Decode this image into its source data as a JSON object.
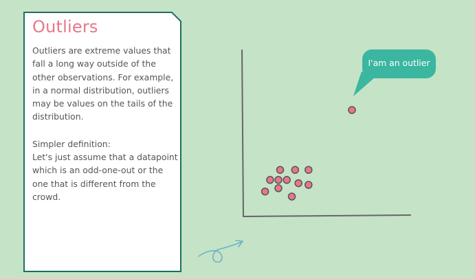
{
  "card": {
    "title": "Outliers",
    "paragraph1_lines": [
      "Outliers are extreme values that",
      "fall a long way outside of the",
      "other observations. For example,",
      "in a normal distribution, outliers",
      "may be values on the tails of the",
      "distribution."
    ],
    "paragraph2_lines": [
      "Simpler definition:",
      "Let's just assume that a datapoint",
      "which is an odd-one-out or the",
      "one that is different from the",
      "crowd."
    ]
  },
  "callout": {
    "label": "I'am an outlier"
  },
  "colors": {
    "background": "#c5e3c6",
    "card_border": "#1e6e5e",
    "title": "#e8778b",
    "point_fill": "#e8778b",
    "point_stroke": "#555555",
    "axis": "#666666",
    "callout": "#3bb6a0",
    "doodle": "#6ab3c2"
  },
  "chart_data": {
    "type": "scatter",
    "title": "",
    "xlabel": "",
    "ylabel": "",
    "grid": false,
    "xlim": [
      0,
      10
    ],
    "ylim": [
      0,
      10
    ],
    "series": [
      {
        "points": [
          {
            "x": 1.3,
            "y": 1.5
          },
          {
            "x": 1.6,
            "y": 2.2
          },
          {
            "x": 2.1,
            "y": 2.2
          },
          {
            "x": 2.1,
            "y": 1.7
          },
          {
            "x": 2.2,
            "y": 2.8
          },
          {
            "x": 2.6,
            "y": 2.2
          },
          {
            "x": 2.9,
            "y": 1.2
          },
          {
            "x": 3.1,
            "y": 2.8
          },
          {
            "x": 3.3,
            "y": 2.0
          },
          {
            "x": 3.9,
            "y": 2.8
          },
          {
            "x": 3.9,
            "y": 1.9
          }
        ]
      },
      {
        "points": [
          {
            "x": 6.5,
            "y": 6.4
          }
        ]
      }
    ]
  }
}
